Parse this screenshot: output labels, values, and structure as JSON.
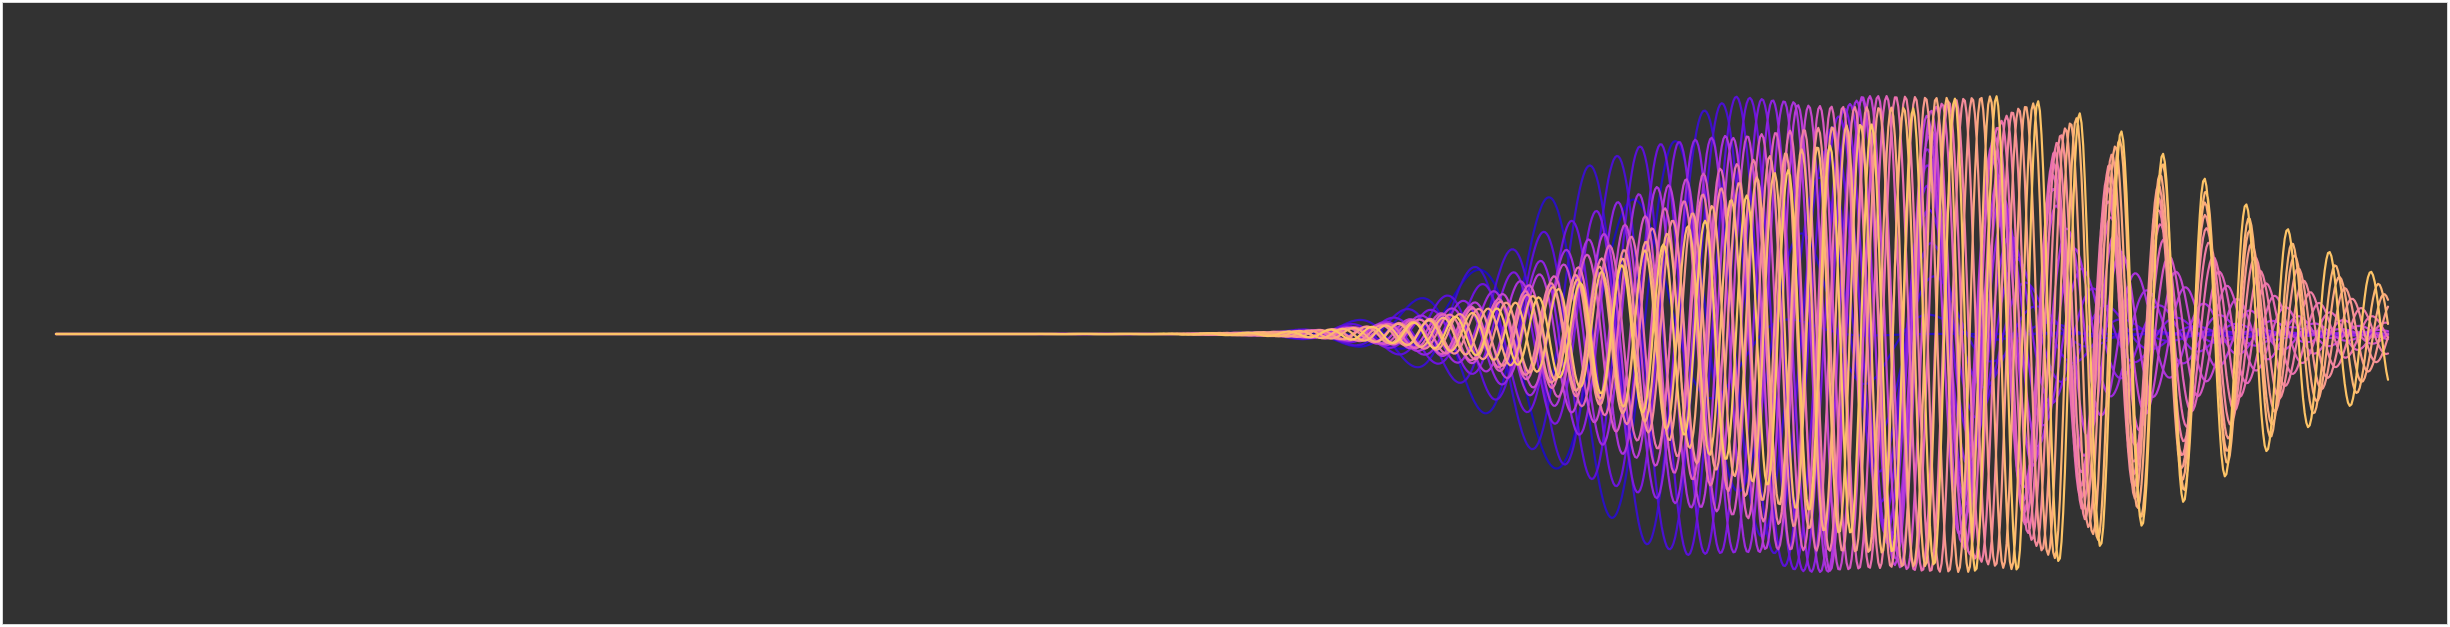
{
  "chart_data": {
    "type": "line",
    "title": "",
    "xlabel": "",
    "ylabel": "",
    "grid": false,
    "legend": "none",
    "background_color": "#323232",
    "xlim": [
      0,
      1
    ],
    "ylim": [
      -1.1,
      1.1
    ],
    "colormap": [
      "#1d0fb8",
      "#5a10d8",
      "#8d23e0",
      "#b83bd9",
      "#d656c4",
      "#ea6fb0",
      "#f58b9a",
      "#fba97f",
      "#fdc467"
    ],
    "series": [
      {
        "center": 0.66,
        "width": 0.04,
        "amplitude": 0.62,
        "frequency": 14,
        "phase": 0.0,
        "color": "#1d0fb8"
      },
      {
        "center": 0.686,
        "width": 0.055,
        "amplitude": 0.82,
        "frequency": 18,
        "phase": 0.6,
        "color": "#2a10c0"
      },
      {
        "center": 0.704,
        "width": 0.062,
        "amplitude": 0.94,
        "frequency": 20,
        "phase": 1.2,
        "color": "#3a10c8"
      },
      {
        "center": 0.716,
        "width": 0.065,
        "amplitude": 0.97,
        "frequency": 22,
        "phase": 1.8,
        "color": "#4a10d0"
      },
      {
        "center": 0.726,
        "width": 0.068,
        "amplitude": 1.0,
        "frequency": 24,
        "phase": 2.4,
        "color": "#5a10d8"
      },
      {
        "center": 0.735,
        "width": 0.07,
        "amplitude": 1.0,
        "frequency": 26,
        "phase": 3.0,
        "color": "#6c14dc"
      },
      {
        "center": 0.743,
        "width": 0.072,
        "amplitude": 1.0,
        "frequency": 28,
        "phase": 3.6,
        "color": "#7d1ade"
      },
      {
        "center": 0.75,
        "width": 0.074,
        "amplitude": 1.0,
        "frequency": 30,
        "phase": 4.2,
        "color": "#8d23e0"
      },
      {
        "center": 0.757,
        "width": 0.076,
        "amplitude": 1.0,
        "frequency": 32,
        "phase": 4.8,
        "color": "#9d2bdd"
      },
      {
        "center": 0.763,
        "width": 0.078,
        "amplitude": 1.0,
        "frequency": 34,
        "phase": 5.4,
        "color": "#ab33db"
      },
      {
        "center": 0.769,
        "width": 0.08,
        "amplitude": 1.0,
        "frequency": 36,
        "phase": 0.3,
        "color": "#b83bd9"
      },
      {
        "center": 0.775,
        "width": 0.082,
        "amplitude": 1.0,
        "frequency": 38,
        "phase": 0.9,
        "color": "#c547cf"
      },
      {
        "center": 0.781,
        "width": 0.084,
        "amplitude": 1.0,
        "frequency": 40,
        "phase": 1.5,
        "color": "#d656c4"
      },
      {
        "center": 0.787,
        "width": 0.086,
        "amplitude": 1.0,
        "frequency": 42,
        "phase": 2.1,
        "color": "#e062ba"
      },
      {
        "center": 0.793,
        "width": 0.088,
        "amplitude": 1.0,
        "frequency": 44,
        "phase": 2.7,
        "color": "#ea6fb0"
      },
      {
        "center": 0.799,
        "width": 0.09,
        "amplitude": 1.0,
        "frequency": 46,
        "phase": 3.3,
        "color": "#f07da5"
      },
      {
        "center": 0.805,
        "width": 0.092,
        "amplitude": 1.0,
        "frequency": 48,
        "phase": 3.9,
        "color": "#f58b9a"
      },
      {
        "center": 0.811,
        "width": 0.094,
        "amplitude": 1.0,
        "frequency": 50,
        "phase": 4.5,
        "color": "#f89a8c"
      },
      {
        "center": 0.817,
        "width": 0.096,
        "amplitude": 1.0,
        "frequency": 52,
        "phase": 5.1,
        "color": "#fba97f"
      },
      {
        "center": 0.823,
        "width": 0.098,
        "amplitude": 1.0,
        "frequency": 54,
        "phase": 5.7,
        "color": "#fcb673"
      },
      {
        "center": 0.829,
        "width": 0.1,
        "amplitude": 1.0,
        "frequency": 56,
        "phase": 0.5,
        "color": "#fdc467"
      }
    ]
  }
}
